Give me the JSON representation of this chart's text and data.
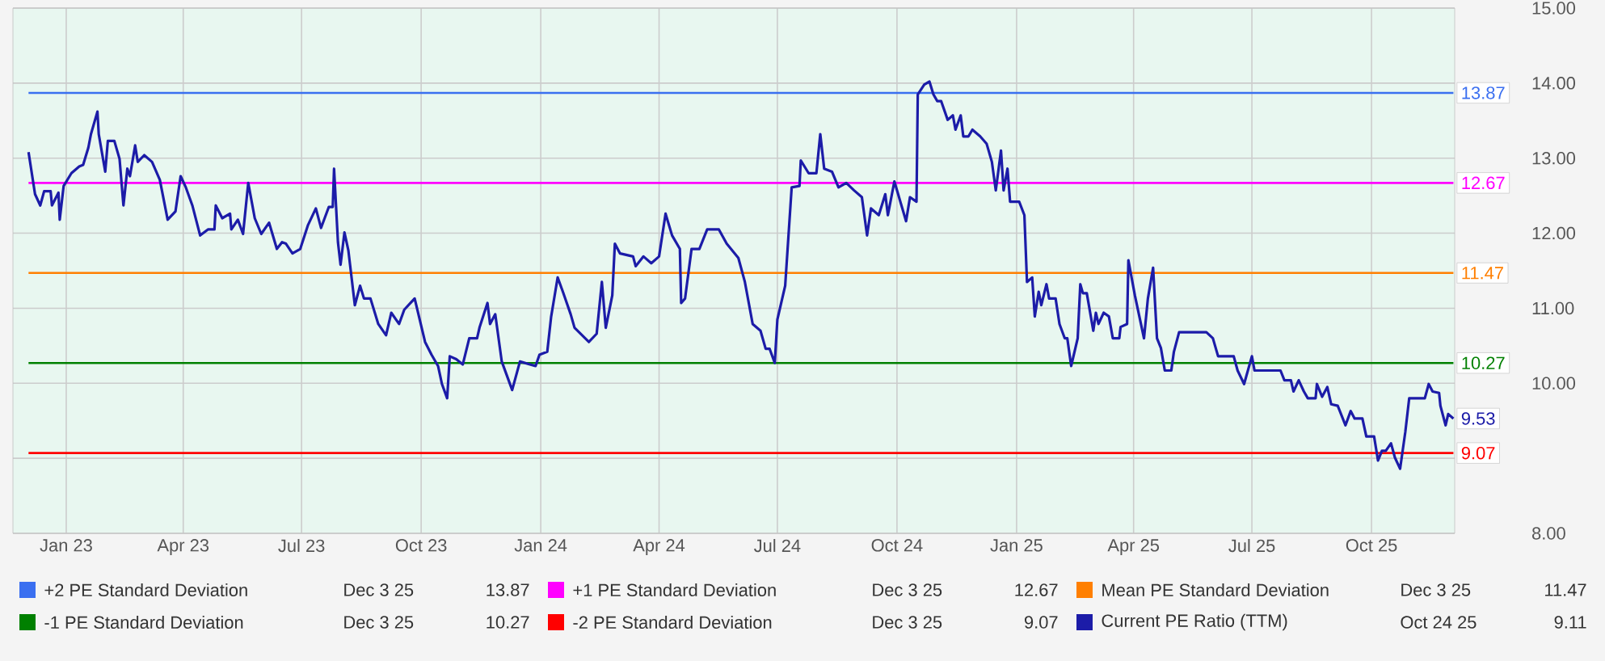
{
  "chart_data": {
    "type": "line",
    "xlim": [
      "2022-11-21",
      "2025-12-04"
    ],
    "xticks": [
      {
        "value": "2023-01-01",
        "label": "Jan 23"
      },
      {
        "value": "2023-04-01",
        "label": "Apr 23"
      },
      {
        "value": "2023-07-01",
        "label": "Jul 23"
      },
      {
        "value": "2023-10-01",
        "label": "Oct 23"
      },
      {
        "value": "2024-01-01",
        "label": "Jan 24"
      },
      {
        "value": "2024-04-01",
        "label": "Apr 24"
      },
      {
        "value": "2024-07-01",
        "label": "Jul 24"
      },
      {
        "value": "2024-10-01",
        "label": "Oct 24"
      },
      {
        "value": "2025-01-01",
        "label": "Jan 25"
      },
      {
        "value": "2025-04-01",
        "label": "Apr 25"
      },
      {
        "value": "2025-07-01",
        "label": "Jul 25"
      },
      {
        "value": "2025-10-01",
        "label": "Oct 25"
      }
    ],
    "ylim": [
      8,
      15
    ],
    "yticks": [
      {
        "value": 8,
        "label": "8.00"
      },
      {
        "value": 9,
        "label": null
      },
      {
        "value": 10,
        "label": "10.00"
      },
      {
        "value": 11,
        "label": "11.00"
      },
      {
        "value": 12,
        "label": "12.00"
      },
      {
        "value": 13,
        "label": "13.00"
      },
      {
        "value": 14,
        "label": "14.00"
      },
      {
        "value": 15,
        "label": "15.00"
      }
    ],
    "grid": true,
    "legend": "bottom",
    "annotations": [
      "Dec 3 25",
      "13.87",
      "Dec 3 25",
      "12.67",
      "Dec 3 25",
      "11.47",
      "Dec 3 25",
      "10.27",
      "Dec 3 25",
      "9.07",
      "Oct 24 25",
      "9.11",
      {
        "text": "9.53",
        "x": "2025-12-03",
        "y": 9.53
      }
    ],
    "series": [
      {
        "name": "+2 PE Standard Deviation",
        "color": "#3a6ff0",
        "x": [
          "2022-12-03",
          "2025-12-03"
        ],
        "values": [
          13.87,
          13.87
        ],
        "value_labels": [
          null,
          "13.87"
        ]
      },
      {
        "name": "+1 PE Standard Deviation",
        "color": "#ff00ff",
        "x": [
          "2022-12-03",
          "2025-12-03"
        ],
        "values": [
          12.67,
          12.67
        ],
        "value_labels": [
          null,
          "12.67"
        ]
      },
      {
        "name": "Mean PE Standard Deviation",
        "color": "#ff7f00",
        "x": [
          "2022-12-03",
          "2025-12-03"
        ],
        "values": [
          11.47,
          11.47
        ],
        "value_labels": [
          null,
          "11.47"
        ]
      },
      {
        "name": "-1 PE Standard Deviation",
        "color": "#008000",
        "x": [
          "2022-12-03",
          "2025-12-03"
        ],
        "values": [
          10.27,
          10.27
        ],
        "value_labels": [
          null,
          "10.27"
        ]
      },
      {
        "name": "-2 PE Standard Deviation",
        "color": "#ff0000",
        "x": [
          "2022-12-03",
          "2025-12-03"
        ],
        "values": [
          9.07,
          9.07
        ],
        "value_labels": [
          null,
          "9.07"
        ]
      },
      {
        "name": "Current PE Ratio (TTM)",
        "color": "#1c1ca8",
        "x": [
          "2022-12-03",
          "2022-12-08",
          "2022-12-12",
          "2022-12-15",
          "2022-12-20",
          "2022-12-21",
          "2022-12-26",
          "2022-12-27",
          "2022-12-30",
          "2023-01-05",
          "2023-01-11",
          "2023-01-14",
          "2023-01-18",
          "2023-01-20",
          "2023-01-25",
          "2023-01-26",
          "2023-01-31",
          "2023-02-02",
          "2023-02-07",
          "2023-02-11",
          "2023-02-14",
          "2023-02-17",
          "2023-02-19",
          "2023-02-23",
          "2023-02-25",
          "2023-03-02",
          "2023-03-08",
          "2023-03-14",
          "2023-03-20",
          "2023-03-26",
          "2023-03-30",
          "2023-04-03",
          "2023-04-08",
          "2023-04-14",
          "2023-04-20",
          "2023-04-25",
          "2023-04-26",
          "2023-05-01",
          "2023-05-07",
          "2023-05-08",
          "2023-05-13",
          "2023-05-17",
          "2023-05-21",
          "2023-05-26",
          "2023-05-31",
          "2023-06-06",
          "2023-06-12",
          "2023-06-16",
          "2023-06-19",
          "2023-06-24",
          "2023-06-30",
          "2023-07-06",
          "2023-07-12",
          "2023-07-16",
          "2023-07-22",
          "2023-07-25",
          "2023-07-26",
          "2023-07-29",
          "2023-07-31",
          "2023-08-03",
          "2023-08-06",
          "2023-08-11",
          "2023-08-15",
          "2023-08-18",
          "2023-08-23",
          "2023-08-29",
          "2023-09-04",
          "2023-09-08",
          "2023-09-14",
          "2023-09-18",
          "2023-09-26",
          "2023-10-04",
          "2023-10-09",
          "2023-10-14",
          "2023-10-17",
          "2023-10-21",
          "2023-10-23",
          "2023-10-28",
          "2023-11-02",
          "2023-11-07",
          "2023-11-13",
          "2023-11-15",
          "2023-11-21",
          "2023-11-23",
          "2023-11-27",
          "2023-12-02",
          "2023-12-10",
          "2023-12-16",
          "2023-12-28",
          "2023-12-31",
          "2024-01-06",
          "2024-01-09",
          "2024-01-14",
          "2024-01-18",
          "2024-01-24",
          "2024-01-27",
          "2024-02-07",
          "2024-02-13",
          "2024-02-17",
          "2024-02-20",
          "2024-02-25",
          "2024-02-27",
          "2024-03-02",
          "2024-03-12",
          "2024-03-14",
          "2024-03-20",
          "2024-03-26",
          "2024-04-01",
          "2024-04-06",
          "2024-04-11",
          "2024-04-17",
          "2024-04-18",
          "2024-04-21",
          "2024-04-26",
          "2024-05-02",
          "2024-05-08",
          "2024-05-17",
          "2024-05-23",
          "2024-06-01",
          "2024-06-06",
          "2024-06-12",
          "2024-06-18",
          "2024-06-22",
          "2024-06-25",
          "2024-06-29",
          "2024-07-01",
          "2024-07-07",
          "2024-07-12",
          "2024-07-18",
          "2024-07-19",
          "2024-07-25",
          "2024-07-31",
          "2024-08-03",
          "2024-08-06",
          "2024-08-12",
          "2024-08-17",
          "2024-08-23",
          "2024-08-29",
          "2024-09-04",
          "2024-09-08",
          "2024-09-11",
          "2024-09-17",
          "2024-09-22",
          "2024-09-24",
          "2024-09-29",
          "2024-10-08",
          "2024-10-11",
          "2024-10-16",
          "2024-10-17",
          "2024-10-22",
          "2024-10-26",
          "2024-10-29",
          "2024-11-01",
          "2024-11-04",
          "2024-11-09",
          "2024-11-13",
          "2024-11-15",
          "2024-11-19",
          "2024-11-21",
          "2024-11-25",
          "2024-11-28",
          "2024-12-04",
          "2024-12-09",
          "2024-12-13",
          "2024-12-16",
          "2024-12-20",
          "2024-12-22",
          "2024-12-25",
          "2024-12-27",
          "2025-01-03",
          "2025-01-07",
          "2025-01-09",
          "2025-01-13",
          "2025-01-15",
          "2025-01-18",
          "2025-01-20",
          "2025-01-24",
          "2025-01-26",
          "2025-01-31",
          "2025-02-03",
          "2025-02-07",
          "2025-02-09",
          "2025-02-12",
          "2025-02-17",
          "2025-02-19",
          "2025-02-21",
          "2025-02-24",
          "2025-03-01",
          "2025-03-03",
          "2025-03-05",
          "2025-03-09",
          "2025-03-13",
          "2025-03-16",
          "2025-03-21",
          "2025-03-22",
          "2025-03-27",
          "2025-03-28",
          "2025-04-02",
          "2025-04-09",
          "2025-04-12",
          "2025-04-16",
          "2025-04-19",
          "2025-04-22",
          "2025-04-25",
          "2025-04-30",
          "2025-05-02",
          "2025-05-06",
          "2025-05-27",
          "2025-06-01",
          "2025-06-05",
          "2025-06-17",
          "2025-06-20",
          "2025-06-25",
          "2025-07-01",
          "2025-07-03",
          "2025-07-23",
          "2025-07-26",
          "2025-07-31",
          "2025-08-02",
          "2025-08-06",
          "2025-08-10",
          "2025-08-13",
          "2025-08-19",
          "2025-08-20",
          "2025-08-24",
          "2025-08-28",
          "2025-08-31",
          "2025-09-05",
          "2025-09-11",
          "2025-09-15",
          "2025-09-18",
          "2025-09-24",
          "2025-09-27",
          "2025-10-03",
          "2025-10-06",
          "2025-10-09",
          "2025-10-12",
          "2025-10-16",
          "2025-10-19",
          "2025-10-23",
          "2025-10-27",
          "2025-10-30",
          "2025-11-11",
          "2025-11-14",
          "2025-11-17",
          "2025-11-22",
          "2025-11-23",
          "2025-11-27",
          "2025-11-29",
          "2025-12-03"
        ],
        "values": [
          13.08,
          12.52,
          12.37,
          12.56,
          12.56,
          12.37,
          12.54,
          12.18,
          12.63,
          12.8,
          12.89,
          12.91,
          13.14,
          13.32,
          13.62,
          13.32,
          12.82,
          13.23,
          13.23,
          12.99,
          12.37,
          12.86,
          12.76,
          13.17,
          12.95,
          13.04,
          12.95,
          12.71,
          12.18,
          12.29,
          12.76,
          12.61,
          12.37,
          11.97,
          12.05,
          12.05,
          12.37,
          12.2,
          12.26,
          12.05,
          12.18,
          11.99,
          12.67,
          12.2,
          11.99,
          12.14,
          11.79,
          11.88,
          11.86,
          11.73,
          11.79,
          12.11,
          12.33,
          12.07,
          12.35,
          12.35,
          12.86,
          11.88,
          11.58,
          12.01,
          11.77,
          11.04,
          11.3,
          11.13,
          11.13,
          10.79,
          10.64,
          10.94,
          10.79,
          10.98,
          11.13,
          10.55,
          10.38,
          10.23,
          9.99,
          9.8,
          10.36,
          10.32,
          10.25,
          10.6,
          10.6,
          10.75,
          11.07,
          10.79,
          10.92,
          10.29,
          9.91,
          10.29,
          10.23,
          10.38,
          10.42,
          10.89,
          11.41,
          11.22,
          10.92,
          10.74,
          10.55,
          10.66,
          11.35,
          10.74,
          11.17,
          11.86,
          11.73,
          11.69,
          11.56,
          11.69,
          11.6,
          11.69,
          12.26,
          11.97,
          11.79,
          11.07,
          11.13,
          11.79,
          11.79,
          12.05,
          12.05,
          11.86,
          11.67,
          11.35,
          10.79,
          10.7,
          10.46,
          10.46,
          10.27,
          10.85,
          11.3,
          12.61,
          12.63,
          12.97,
          12.8,
          12.8,
          13.32,
          12.86,
          12.82,
          12.61,
          12.67,
          12.57,
          12.48,
          11.97,
          12.33,
          12.24,
          12.52,
          12.24,
          12.69,
          12.16,
          12.48,
          12.42,
          13.85,
          13.98,
          14.02,
          13.85,
          13.76,
          13.76,
          13.51,
          13.57,
          13.38,
          13.57,
          13.29,
          13.29,
          13.38,
          13.29,
          13.19,
          12.95,
          12.57,
          13.1,
          12.57,
          12.86,
          12.42,
          12.42,
          12.24,
          11.35,
          11.41,
          10.89,
          11.22,
          11.04,
          11.32,
          11.13,
          11.13,
          10.79,
          10.6,
          10.6,
          10.23,
          10.6,
          11.32,
          11.2,
          11.2,
          10.7,
          10.94,
          10.79,
          10.94,
          10.89,
          10.6,
          10.6,
          10.75,
          10.79,
          11.64,
          11.17,
          10.6,
          11.13,
          11.54,
          10.6,
          10.47,
          10.17,
          10.17,
          10.42,
          10.68,
          10.68,
          10.6,
          10.36,
          10.36,
          10.17,
          9.99,
          10.36,
          10.17,
          10.17,
          10.04,
          10.04,
          9.89,
          10.04,
          9.89,
          9.8,
          9.8,
          9.99,
          9.82,
          9.95,
          9.72,
          9.7,
          9.44,
          9.63,
          9.53,
          9.53,
          9.29,
          9.29,
          8.97,
          9.1,
          9.1,
          9.2,
          9.01,
          8.86,
          9.35,
          9.8,
          9.8,
          9.99,
          9.89,
          9.87,
          9.7,
          9.44,
          9.59,
          9.53
        ]
      }
    ]
  }
}
